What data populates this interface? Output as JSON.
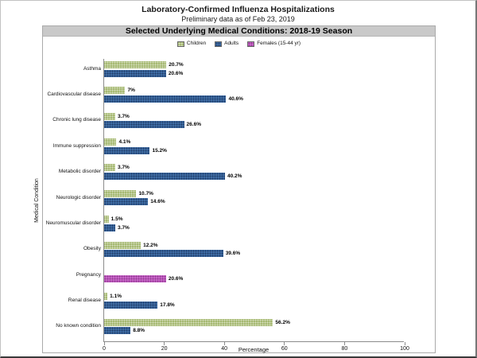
{
  "header": {
    "title": "Laboratory-Confirmed Influenza Hospitalizations",
    "subtitle": "Preliminary data as of Feb 23, 2019",
    "banner": "Selected Underlying Medical Conditions: 2018-19 Season"
  },
  "colors": {
    "children": "#a6b972",
    "adults": "#3d6ba3",
    "females": "#c763c7",
    "banner_bg": "#c9c9c9",
    "axis": "#8c8c8c"
  },
  "chart_data": {
    "type": "bar",
    "orientation": "horizontal",
    "title": "Selected Underlying Medical Conditions: 2018-19 Season",
    "xlabel": "Percentage",
    "ylabel": "Medical Condition",
    "xlim": [
      0,
      100
    ],
    "xticks": [
      0,
      20,
      40,
      60,
      80,
      100
    ],
    "grid": false,
    "legend_position": "top",
    "categories": [
      "Asthma",
      "Cardiovascular disease",
      "Chronic lung disease",
      "Immune suppression",
      "Metabolic disorder",
      "Neurologic disorder",
      "Neuromuscular disorder",
      "Obesity",
      "Pregnancy",
      "Renal disease",
      "No known condition"
    ],
    "series": [
      {
        "name": "Children",
        "key": "children",
        "color": "#a6b972",
        "values": [
          20.7,
          7,
          3.7,
          4.1,
          3.7,
          10.7,
          1.5,
          12.2,
          null,
          1.1,
          56.2
        ],
        "labels": [
          "20.7%",
          "7%",
          "3.7%",
          "4.1%",
          "3.7%",
          "10.7%",
          "1.5%",
          "12.2%",
          null,
          "1.1%",
          "56.2%"
        ]
      },
      {
        "name": "Adults",
        "key": "adults",
        "color": "#3d6ba3",
        "values": [
          20.6,
          40.6,
          26.6,
          15.2,
          40.2,
          14.6,
          3.7,
          39.6,
          null,
          17.8,
          8.8
        ],
        "labels": [
          "20.6%",
          "40.6%",
          "26.6%",
          "15.2%",
          "40.2%",
          "14.6%",
          "3.7%",
          "39.6%",
          null,
          "17.8%",
          "8.8%"
        ]
      },
      {
        "name": "Females (15-44 yr)",
        "key": "females",
        "color": "#c763c7",
        "values": [
          null,
          null,
          null,
          null,
          null,
          null,
          null,
          null,
          20.6,
          null,
          null
        ],
        "labels": [
          null,
          null,
          null,
          null,
          null,
          null,
          null,
          null,
          "20.6%",
          null,
          null
        ]
      }
    ]
  }
}
